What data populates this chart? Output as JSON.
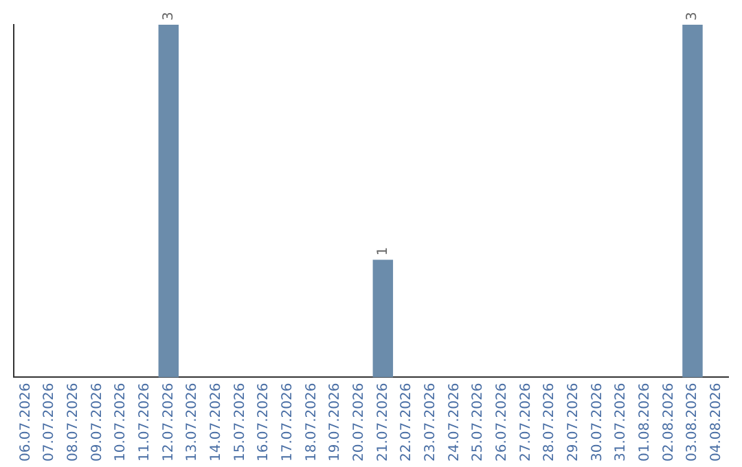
{
  "chart_data": {
    "type": "bar",
    "categories": [
      "06.07.2026",
      "07.07.2026",
      "08.07.2026",
      "09.07.2026",
      "10.07.2026",
      "11.07.2026",
      "12.07.2026",
      "13.07.2026",
      "14.07.2026",
      "15.07.2026",
      "16.07.2026",
      "17.07.2026",
      "18.07.2026",
      "19.07.2026",
      "20.07.2026",
      "21.07.2026",
      "22.07.2026",
      "23.07.2026",
      "24.07.2026",
      "25.07.2026",
      "26.07.2026",
      "27.07.2026",
      "28.07.2026",
      "29.07.2026",
      "30.07.2026",
      "31.07.2026",
      "01.08.2026",
      "02.08.2026",
      "03.08.2026",
      "04.08.2026"
    ],
    "values": [
      0,
      0,
      0,
      0,
      0,
      0,
      3,
      0,
      0,
      0,
      0,
      0,
      0,
      0,
      0,
      1,
      0,
      0,
      0,
      0,
      0,
      0,
      0,
      0,
      0,
      0,
      0,
      0,
      3,
      0
    ],
    "value_labels": [
      null,
      null,
      null,
      null,
      null,
      null,
      "3",
      null,
      null,
      null,
      null,
      null,
      null,
      null,
      null,
      "1",
      null,
      null,
      null,
      null,
      null,
      null,
      null,
      null,
      null,
      null,
      null,
      null,
      "3",
      null
    ],
    "color": "#6b8cab",
    "grid": false,
    "tick_labels": "x",
    "legend": false
  }
}
